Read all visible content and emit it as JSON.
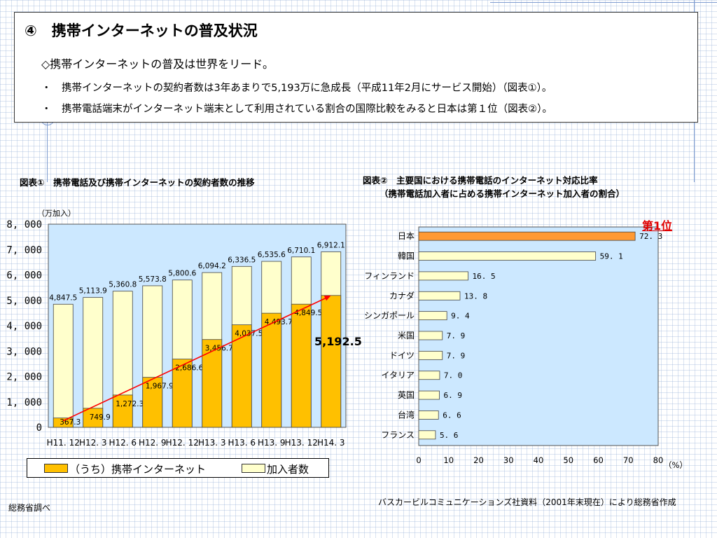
{
  "header": {
    "title": "④　携帯インターネットの普及状況",
    "subtitle": "◇携帯インターネットの普及は世界をリード。",
    "bullets": [
      "・　携帯インターネットの契約者数は3年あまりで5,193万に急成長（平成11年2月にサービス開始）（図表①）。",
      "・　携帯電話端末がインターネット端末として利用されている割合の国際比較をみると日本は第１位（図表②）。"
    ]
  },
  "chart_data": [
    {
      "type": "bar",
      "title": "図表①　携帯電話及び携帯インターネットの契約者数の推移",
      "ylabel": "（万加入）",
      "categories": [
        "H11. 12",
        "H12. 3",
        "H12. 6",
        "H12. 9",
        "H12. 12",
        "H13. 3",
        "H13. 6",
        "H13. 9",
        "H13. 12",
        "H14. 3"
      ],
      "series": [
        {
          "name": "（うち）携帯インターネット",
          "values": [
            367.3,
            749.9,
            1272.3,
            1967.9,
            2686.6,
            3456.7,
            4037.5,
            4493.7,
            4849.5,
            5192.5
          ],
          "color": "#ffc000"
        },
        {
          "name": "加入者数",
          "values": [
            4847.5,
            5113.9,
            5360.8,
            5573.8,
            5800.6,
            6094.2,
            6336.5,
            6535.6,
            6710.1,
            6912.1
          ],
          "color": "#ffffcc"
        }
      ],
      "value_labels": {
        "internet": [
          "367.3",
          "749.9",
          "1,272.3",
          "1,967.9",
          "2,686.6",
          "3,456.7",
          "4,037.5",
          "4,493.7",
          "4,849.5",
          ""
        ],
        "subscribers": [
          "4,847.5",
          "5,113.9",
          "5,360.8",
          "5,573.8",
          "5,800.6",
          "6,094.2",
          "6,336.5",
          "6,535.6",
          "6,710.1",
          "6,912.1"
        ]
      },
      "yticks": [
        0,
        1000,
        2000,
        3000,
        4000,
        5000,
        6000,
        7000,
        8000
      ],
      "ytick_labels": [
        "0",
        "1, 000",
        "2, 000",
        "3, 000",
        "4, 000",
        "5, 000",
        "6, 000",
        "7, 000",
        "8, 000"
      ],
      "ylim": [
        0,
        8000
      ],
      "highlight_label": "5,192.5",
      "plot_bg": "#cce8ff",
      "trend_color": "#ff0000"
    },
    {
      "type": "bar",
      "orientation": "horizontal",
      "title": "図表②　主要国における携帯電話のインターネット対応比率",
      "subtitle": "（携帯電話加入者に占める携帯インターネット加入者の割合）",
      "categories": [
        "日本",
        "韓国",
        "フィンランド",
        "カナダ",
        "シンガポール",
        "米国",
        "ドイツ",
        "イタリア",
        "英国",
        "台湾",
        "フランス"
      ],
      "values": [
        72.3,
        59.1,
        16.5,
        13.8,
        9.4,
        7.9,
        7.9,
        7.0,
        6.9,
        6.6,
        5.6
      ],
      "value_labels": [
        "72. 3",
        "59. 1",
        "16. 5",
        "13. 8",
        "9. 4",
        "7. 9",
        "7. 9",
        "7. 0",
        "6. 9",
        "6. 6",
        "5. 6"
      ],
      "xticks": [
        0,
        10,
        20,
        30,
        40,
        50,
        60,
        70,
        80
      ],
      "xlim": [
        0,
        80
      ],
      "xunit": "（%）",
      "highlight_color": "#ff9933",
      "bar_color": "#ffffcc",
      "plot_bg": "#cce8ff"
    }
  ],
  "legend": {
    "internet": "（うち）携帯インターネット",
    "subscribers": "加入者数"
  },
  "annotation": {
    "first_place": "第1位"
  },
  "sources": {
    "left": "総務省調べ",
    "right": "バスカービルコミュニケーションズ社資料（2001年末現在）により総務省作成"
  }
}
